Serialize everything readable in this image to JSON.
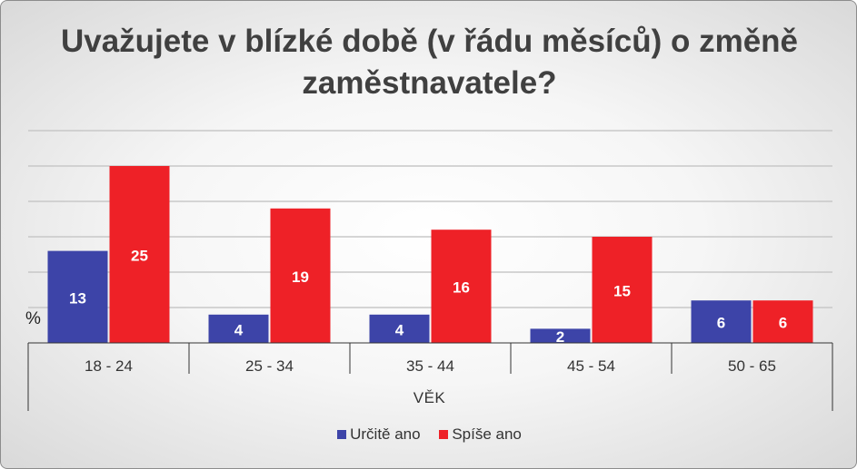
{
  "colors": {
    "determined": "#3d44a8",
    "probably": "#ee2127"
  },
  "chart_data": {
    "type": "bar",
    "title": "Uvažujete v blízké době (v řádu měsíců) o změně zaměstnavatele?",
    "xlabel": "VĚK",
    "ylabel": "%",
    "categories": [
      "18 - 24",
      "25 - 34",
      "35 - 44",
      "45 - 54",
      "50 - 65"
    ],
    "series": [
      {
        "name": "Určitě ano",
        "values": [
          13,
          4,
          4,
          2,
          6
        ]
      },
      {
        "name": "Spíše ano",
        "values": [
          25,
          19,
          16,
          15,
          6
        ]
      }
    ],
    "ylim": [
      0,
      30
    ],
    "grid": true,
    "legend": "bottom"
  }
}
